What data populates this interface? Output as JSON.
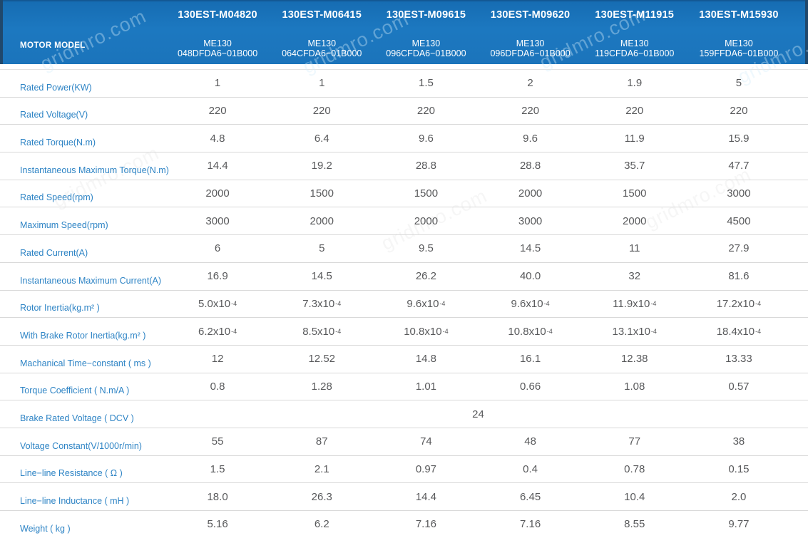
{
  "watermark": {
    "text": "gridmro.com"
  },
  "header": {
    "label": "MOTOR MODEL",
    "columns": [
      {
        "model": "130EST-M04820",
        "series": "ME130",
        "code": "048DFDA6−01B000"
      },
      {
        "model": "130EST-M06415",
        "series": "ME130",
        "code": "064CFDA6−01B000"
      },
      {
        "model": "130EST-M09615",
        "series": "ME130",
        "code": "096CFDA6−01B000"
      },
      {
        "model": "130EST-M09620",
        "series": "ME130",
        "code": "096DFDA6−01B000"
      },
      {
        "model": "130EST-M11915",
        "series": "ME130",
        "code": "119CFDA6−01B000"
      },
      {
        "model": "130EST-M15930",
        "series": "ME130",
        "code": "159FFDA6−01B000"
      }
    ]
  },
  "rows": [
    {
      "label": "Rated Power(KW)",
      "values": [
        "1",
        "1",
        "1.5",
        "2",
        "1.9",
        "5"
      ]
    },
    {
      "label": "Rated Voltage(V)",
      "values": [
        "220",
        "220",
        "220",
        "220",
        "220",
        "220"
      ]
    },
    {
      "label": "Rated Torque(N.m)",
      "values": [
        "4.8",
        "6.4",
        "9.6",
        "9.6",
        "11.9",
        "15.9"
      ]
    },
    {
      "label": "Instantaneous Maximum Torque(N.m)",
      "values": [
        "14.4",
        "19.2",
        "28.8",
        "28.8",
        "35.7",
        "47.7"
      ]
    },
    {
      "label": "Rated Speed(rpm)",
      "values": [
        "2000",
        "1500",
        "1500",
        "2000",
        "1500",
        "3000"
      ]
    },
    {
      "label": "Maximum Speed(rpm)",
      "values": [
        "3000",
        "2000",
        "2000",
        "3000",
        "2000",
        "4500"
      ]
    },
    {
      "label": "Rated Current(A)",
      "values": [
        "6",
        "5",
        "9.5",
        "14.5",
        "11",
        "27.9"
      ]
    },
    {
      "label": "Instantaneous Maximum Current(A)",
      "values": [
        "16.9",
        "14.5",
        "26.2",
        "40.0",
        "32",
        "81.6"
      ]
    },
    {
      "label": "Rotor Inertia(kg.m² )",
      "values": [
        "5.0x10^-4",
        "7.3x10^-4",
        "9.6x10^-4",
        "9.6x10^-4",
        "11.9x10^-4",
        "17.2x10^-4"
      ]
    },
    {
      "label": "With Brake Rotor Inertia(kg.m² )",
      "values": [
        "6.2x10^-4",
        "8.5x10^-4",
        "10.8x10^-4",
        "10.8x10^-4",
        "13.1x10^-4",
        "18.4x10^-4"
      ]
    },
    {
      "label": "Machanical Time−constant ( ms )",
      "values": [
        "12",
        "12.52",
        "14.8",
        "16.1",
        "12.38",
        "13.33"
      ]
    },
    {
      "label": "Torque Coefficient ( N.m/A )",
      "values": [
        "0.8",
        "1.28",
        "1.01",
        "0.66",
        "1.08",
        "0.57"
      ]
    },
    {
      "label": "Brake Rated Voltage ( DCV )",
      "span_value": "24"
    },
    {
      "label": "Voltage Constant(V/1000r/min)",
      "values": [
        "55",
        "87",
        "74",
        "48",
        "77",
        "38"
      ]
    },
    {
      "label": "Line−line Resistance ( Ω )",
      "values": [
        "1.5",
        "2.1",
        "0.97",
        "0.4",
        "0.78",
        "0.15"
      ]
    },
    {
      "label": "Line−line Inductance ( mH )",
      "values": [
        "18.0",
        "26.3",
        "14.4",
        "6.45",
        "10.4",
        "2.0"
      ]
    },
    {
      "label": "Weight ( kg )",
      "values": [
        "5.16",
        "6.2",
        "7.16",
        "7.16",
        "8.55",
        "9.77"
      ]
    }
  ],
  "colors": {
    "header_background": "#1C76BD",
    "header_edge": "#20486C",
    "header_text": "#FFFFFF",
    "row_label_text": "#2E84C5",
    "value_text": "#58595B",
    "row_border": "#D9D9D9"
  }
}
